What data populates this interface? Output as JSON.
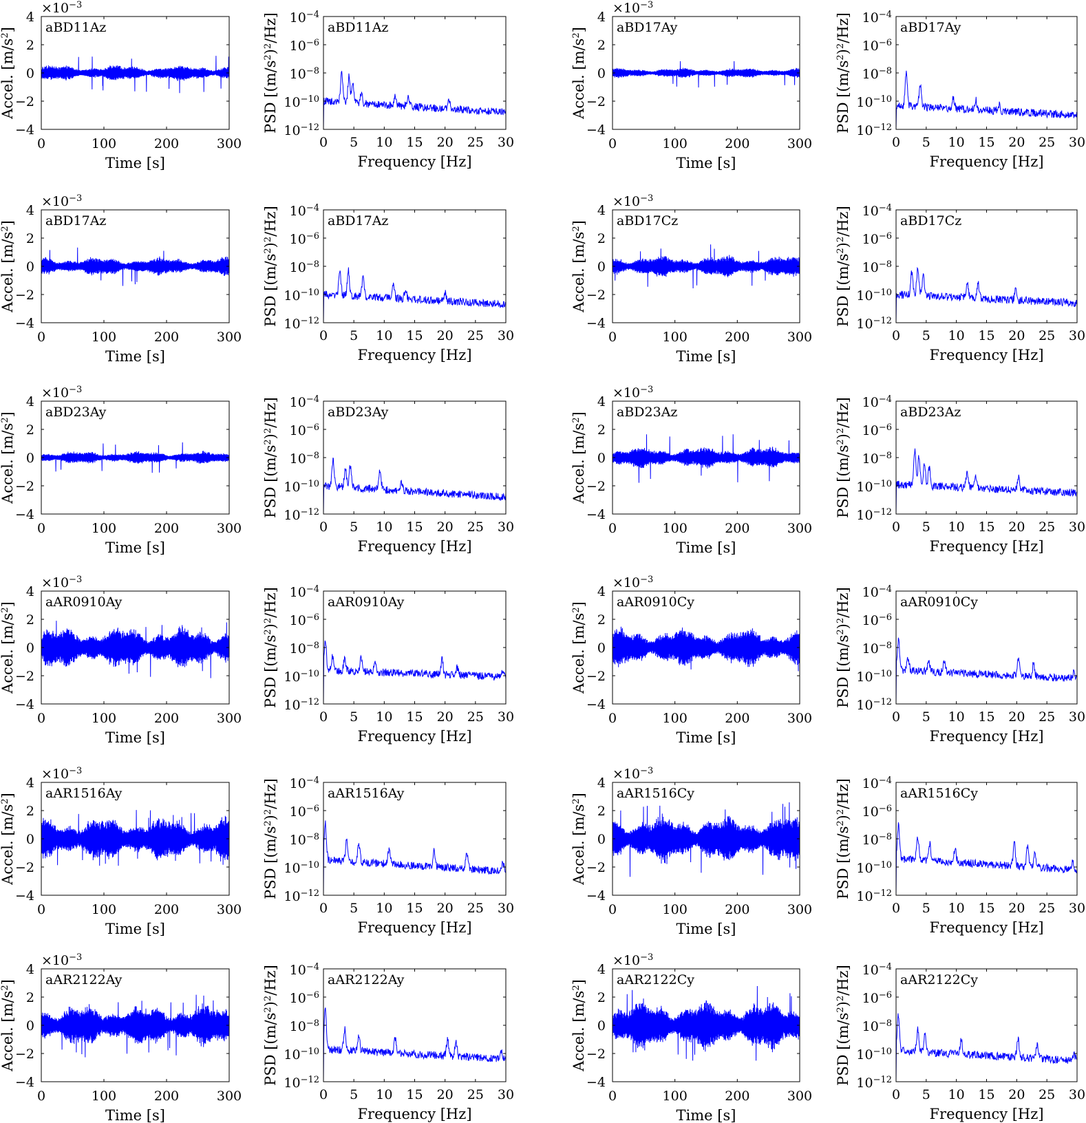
{
  "figure": {
    "time_xlabel": "Time [s]",
    "time_ylabel": "Accel. [m/s2]",
    "psd_xlabel": "Frequency [Hz]",
    "psd_ylabel": "PSD [(m/s2)2/Hz]",
    "time_exponent": "×10−3",
    "line_color": "#0000ff"
  },
  "chart_data": [
    {
      "type": "line",
      "kind": "time",
      "title": "aBD11Az",
      "xlabel": "Time [s]",
      "ylabel": "Accel. [m/s2]",
      "xlim": [
        0,
        300
      ],
      "ylim": [
        -4,
        4
      ],
      "xticks": [
        "0",
        "100",
        "200",
        "300"
      ],
      "yticks": [
        "4",
        "2",
        "0",
        "-2",
        "-4"
      ],
      "y_multiplier": "×10−3",
      "envelope_mean": 0.55,
      "envelope_peak": 1.6,
      "series": [
        {
          "name": "aBD11Az",
          "summary": "acceleration record, approximately ±0.6e-3 m/s2, peaks to ±1.6e-3 m/s2"
        }
      ]
    },
    {
      "type": "line",
      "kind": "psd",
      "title": "aBD11Az",
      "xlabel": "Frequency [Hz]",
      "ylabel": "PSD [(m/s2)2/Hz]",
      "xlim": [
        0,
        30
      ],
      "ylim_log10": [
        -12,
        -4
      ],
      "yscale": "log",
      "xticks": [
        "0",
        "5",
        "10",
        "15",
        "20",
        "25",
        "30"
      ],
      "yticks": [
        "10-4",
        "10-6",
        "10-8",
        "10-10",
        "10-12"
      ],
      "baseline_log10": [
        -10.0,
        -10.8
      ],
      "peaks": [
        [
          3.0,
          -7.9
        ],
        [
          4.2,
          -8.3
        ],
        [
          4.8,
          -8.6
        ],
        [
          6.2,
          -9.4
        ],
        [
          11.8,
          -9.5
        ],
        [
          13.9,
          -9.7
        ],
        [
          20.6,
          -9.9
        ]
      ]
    },
    {
      "type": "line",
      "kind": "time",
      "title": "aBD17Ay",
      "xlabel": "Time [s]",
      "ylabel": "Accel. [m/s2]",
      "xlim": [
        0,
        300
      ],
      "ylim": [
        -4,
        4
      ],
      "xticks": [
        "0",
        "100",
        "200",
        "300"
      ],
      "yticks": [
        "4",
        "2",
        "0",
        "-2",
        "-4"
      ],
      "y_multiplier": "×10−3",
      "envelope_mean": 0.35,
      "envelope_peak": 1.1,
      "series": [
        {
          "name": "aBD17Ay",
          "summary": "acceleration record, approximately ±0.4e-3 m/s2, peaks to ±1.1e-3 m/s2"
        }
      ]
    },
    {
      "type": "line",
      "kind": "psd",
      "title": "aBD17Ay",
      "xlabel": "Frequency [Hz]",
      "ylabel": "PSD [(m/s2)2/Hz]",
      "xlim": [
        0,
        30
      ],
      "ylim_log10": [
        -12,
        -4
      ],
      "yscale": "log",
      "xticks": [
        "0",
        "5",
        "10",
        "15",
        "20",
        "25",
        "30"
      ],
      "yticks": [
        "10-4",
        "10-6",
        "10-8",
        "10-10",
        "10-12"
      ],
      "baseline_log10": [
        -10.3,
        -11.0
      ],
      "peaks": [
        [
          1.7,
          -8.0
        ],
        [
          4.0,
          -8.8
        ],
        [
          9.5,
          -9.8
        ],
        [
          13.2,
          -9.9
        ],
        [
          17.0,
          -10.2
        ]
      ]
    },
    {
      "type": "line",
      "kind": "time",
      "title": "aBD17Az",
      "xlabel": "Time [s]",
      "ylabel": "Accel. [m/s2]",
      "xlim": [
        0,
        300
      ],
      "ylim": [
        -4,
        4
      ],
      "xticks": [
        "0",
        "100",
        "200",
        "300"
      ],
      "yticks": [
        "4",
        "2",
        "0",
        "-2",
        "-4"
      ],
      "y_multiplier": "×10−3",
      "envelope_mean": 0.65,
      "envelope_peak": 1.5,
      "series": [
        {
          "name": "aBD17Az",
          "summary": "acceleration record, approximately ±0.7e-3 m/s2, peaks to ±1.5e-3 m/s2"
        }
      ]
    },
    {
      "type": "line",
      "kind": "psd",
      "title": "aBD17Az",
      "xlabel": "Frequency [Hz]",
      "ylabel": "PSD [(m/s2)2/Hz]",
      "xlim": [
        0,
        30
      ],
      "ylim_log10": [
        -12,
        -4
      ],
      "yscale": "log",
      "xticks": [
        "0",
        "5",
        "10",
        "15",
        "20",
        "25",
        "30"
      ],
      "yticks": [
        "10-4",
        "10-6",
        "10-8",
        "10-10",
        "10-12"
      ],
      "baseline_log10": [
        -10.0,
        -10.7
      ],
      "peaks": [
        [
          2.7,
          -8.4
        ],
        [
          4.1,
          -8.2
        ],
        [
          6.5,
          -8.8
        ],
        [
          11.5,
          -9.2
        ],
        [
          13.5,
          -9.6
        ],
        [
          20.0,
          -9.9
        ]
      ]
    },
    {
      "type": "line",
      "kind": "time",
      "title": "aBD17Cz",
      "xlabel": "Time [s]",
      "ylabel": "Accel. [m/s2]",
      "xlim": [
        0,
        300
      ],
      "ylim": [
        -4,
        4
      ],
      "xticks": [
        "0",
        "100",
        "200",
        "300"
      ],
      "yticks": [
        "4",
        "2",
        "0",
        "-2",
        "-4"
      ],
      "y_multiplier": "×10−3",
      "envelope_mean": 0.75,
      "envelope_peak": 1.7,
      "series": [
        {
          "name": "aBD17Cz",
          "summary": "acceleration record, approximately ±0.8e-3 m/s2, peaks to ±1.7e-3 m/s2"
        }
      ]
    },
    {
      "type": "line",
      "kind": "psd",
      "title": "aBD17Cz",
      "xlabel": "Frequency [Hz]",
      "ylabel": "PSD [(m/s2)2/Hz]",
      "xlim": [
        0,
        30
      ],
      "ylim_log10": [
        -12,
        -4
      ],
      "yscale": "log",
      "xticks": [
        "0",
        "5",
        "10",
        "15",
        "20",
        "25",
        "30"
      ],
      "yticks": [
        "10-4",
        "10-6",
        "10-8",
        "10-10",
        "10-12"
      ],
      "baseline_log10": [
        -10.0,
        -10.6
      ],
      "peaks": [
        [
          2.6,
          -8.4
        ],
        [
          3.6,
          -8.1
        ],
        [
          4.5,
          -8.6
        ],
        [
          11.8,
          -9.1
        ],
        [
          13.6,
          -9.2
        ],
        [
          19.8,
          -9.7
        ]
      ]
    },
    {
      "type": "line",
      "kind": "time",
      "title": "aBD23Ay",
      "xlabel": "Time [s]",
      "ylabel": "Accel. [m/s2]",
      "xlim": [
        0,
        300
      ],
      "ylim": [
        -4,
        4
      ],
      "xticks": [
        "0",
        "100",
        "200",
        "300"
      ],
      "yticks": [
        "4",
        "2",
        "0",
        "-2",
        "-4"
      ],
      "y_multiplier": "×10−3",
      "envelope_mean": 0.45,
      "envelope_peak": 1.3,
      "series": [
        {
          "name": "aBD23Ay",
          "summary": "acceleration record, approximately ±0.5e-3 m/s2, peaks to ±1.3e-3 m/s2"
        }
      ]
    },
    {
      "type": "line",
      "kind": "psd",
      "title": "aBD23Ay",
      "xlabel": "Frequency [Hz]",
      "ylabel": "PSD [(m/s2)2/Hz]",
      "xlim": [
        0,
        30
      ],
      "ylim_log10": [
        -12,
        -4
      ],
      "yscale": "log",
      "xticks": [
        "0",
        "5",
        "10",
        "15",
        "20",
        "25",
        "30"
      ],
      "yticks": [
        "10-4",
        "10-6",
        "10-8",
        "10-10",
        "10-12"
      ],
      "baseline_log10": [
        -10.0,
        -10.8
      ],
      "peaks": [
        [
          1.6,
          -8.2
        ],
        [
          3.6,
          -8.8
        ],
        [
          4.4,
          -8.6
        ],
        [
          9.3,
          -9.0
        ],
        [
          12.8,
          -9.7
        ]
      ]
    },
    {
      "type": "line",
      "kind": "time",
      "title": "aBD23Az",
      "xlabel": "Time [s]",
      "ylabel": "Accel. [m/s2]",
      "xlim": [
        0,
        300
      ],
      "ylim": [
        -4,
        4
      ],
      "xticks": [
        "0",
        "100",
        "200",
        "300"
      ],
      "yticks": [
        "4",
        "2",
        "0",
        "-2",
        "-4"
      ],
      "y_multiplier": "×10−3",
      "envelope_mean": 0.75,
      "envelope_peak": 1.9,
      "series": [
        {
          "name": "aBD23Az",
          "summary": "acceleration record, approximately ±0.8e-3 m/s2, peaks to ±1.9e-3 m/s2"
        }
      ]
    },
    {
      "type": "line",
      "kind": "psd",
      "title": "aBD23Az",
      "xlabel": "Frequency [Hz]",
      "ylabel": "PSD [(m/s2)2/Hz]",
      "xlim": [
        0,
        30
      ],
      "ylim_log10": [
        -12,
        -4
      ],
      "yscale": "log",
      "xticks": [
        "0",
        "5",
        "10",
        "15",
        "20",
        "25",
        "30"
      ],
      "yticks": [
        "10-4",
        "10-6",
        "10-8",
        "10-10",
        "10-12"
      ],
      "baseline_log10": [
        -9.9,
        -10.5
      ],
      "peaks": [
        [
          3.1,
          -7.5
        ],
        [
          3.8,
          -7.9
        ],
        [
          4.7,
          -8.4
        ],
        [
          5.5,
          -8.8
        ],
        [
          11.8,
          -9.0
        ],
        [
          13.2,
          -9.2
        ],
        [
          20.3,
          -9.4
        ]
      ]
    },
    {
      "type": "line",
      "kind": "time",
      "title": "aAR0910Ay",
      "xlabel": "Time [s]",
      "ylabel": "Accel. [m/s2]",
      "xlim": [
        0,
        300
      ],
      "ylim": [
        -4,
        4
      ],
      "xticks": [
        "0",
        "100",
        "200",
        "300"
      ],
      "yticks": [
        "4",
        "2",
        "0",
        "-2",
        "-4"
      ],
      "y_multiplier": "×10−3",
      "envelope_mean": 1.45,
      "envelope_peak": 2.3,
      "series": [
        {
          "name": "aAR0910Ay",
          "summary": "acceleration record, approximately ±1.5e-3 m/s2, peaks to ±2.3e-3 m/s2"
        }
      ]
    },
    {
      "type": "line",
      "kind": "psd",
      "title": "aAR0910Ay",
      "xlabel": "Frequency [Hz]",
      "ylabel": "PSD [(m/s2)2/Hz]",
      "xlim": [
        0,
        30
      ],
      "ylim_log10": [
        -12,
        -4
      ],
      "yscale": "log",
      "xticks": [
        "0",
        "5",
        "10",
        "15",
        "20",
        "25",
        "30"
      ],
      "yticks": [
        "10-4",
        "10-6",
        "10-8",
        "10-10",
        "10-12"
      ],
      "baseline_log10": [
        -9.6,
        -10.1
      ],
      "peaks": [
        [
          0.3,
          -7.5
        ],
        [
          1.5,
          -8.6
        ],
        [
          3.5,
          -8.8
        ],
        [
          6.2,
          -8.8
        ],
        [
          8.5,
          -8.9
        ],
        [
          19.5,
          -8.9
        ],
        [
          22.0,
          -9.4
        ],
        [
          29.5,
          -9.6
        ]
      ]
    },
    {
      "type": "line",
      "kind": "time",
      "title": "aAR0910Cy",
      "xlabel": "Time [s]",
      "ylabel": "Accel. [m/s2]",
      "xlim": [
        0,
        300
      ],
      "ylim": [
        -4,
        4
      ],
      "xticks": [
        "0",
        "100",
        "200",
        "300"
      ],
      "yticks": [
        "4",
        "2",
        "0",
        "-2",
        "-4"
      ],
      "y_multiplier": "×10−3",
      "envelope_mean": 1.35,
      "envelope_peak": 2.2,
      "series": [
        {
          "name": "aAR0910Cy",
          "summary": "acceleration record, approximately ±1.4e-3 m/s2, peaks to ±2.2e-3 m/s2"
        }
      ]
    },
    {
      "type": "line",
      "kind": "psd",
      "title": "aAR0910Cy",
      "xlabel": "Frequency [Hz]",
      "ylabel": "PSD [(m/s2)2/Hz]",
      "xlim": [
        0,
        30
      ],
      "ylim_log10": [
        -12,
        -4
      ],
      "yscale": "log",
      "xticks": [
        "0",
        "5",
        "10",
        "15",
        "20",
        "25",
        "30"
      ],
      "yticks": [
        "10-4",
        "10-6",
        "10-8",
        "10-10",
        "10-12"
      ],
      "baseline_log10": [
        -9.6,
        -10.2
      ],
      "peaks": [
        [
          0.4,
          -7.4
        ],
        [
          2.0,
          -8.8
        ],
        [
          5.4,
          -8.9
        ],
        [
          8.0,
          -9.0
        ],
        [
          20.3,
          -8.7
        ],
        [
          22.8,
          -9.1
        ],
        [
          29.5,
          -9.7
        ]
      ]
    },
    {
      "type": "line",
      "kind": "time",
      "title": "aAR1516Ay",
      "xlabel": "Time [s]",
      "ylabel": "Accel. [m/s2]",
      "xlim": [
        0,
        300
      ],
      "ylim": [
        -4,
        4
      ],
      "xticks": [
        "0",
        "100",
        "200",
        "300"
      ],
      "yticks": [
        "4",
        "2",
        "0",
        "-2",
        "-4"
      ],
      "y_multiplier": "×10−3",
      "envelope_mean": 1.55,
      "envelope_peak": 2.4,
      "series": [
        {
          "name": "aAR1516Ay",
          "summary": "acceleration record, approximately ±1.6e-3 m/s2, peaks to ±2.4e-3 m/s2"
        }
      ]
    },
    {
      "type": "line",
      "kind": "psd",
      "title": "aAR1516Ay",
      "xlabel": "Frequency [Hz]",
      "ylabel": "PSD [(m/s2)2/Hz]",
      "xlim": [
        0,
        30
      ],
      "ylim_log10": [
        -12,
        -4
      ],
      "yscale": "log",
      "xticks": [
        "0",
        "5",
        "10",
        "15",
        "20",
        "25",
        "30"
      ],
      "yticks": [
        "10-4",
        "10-6",
        "10-8",
        "10-10",
        "10-12"
      ],
      "baseline_log10": [
        -9.5,
        -10.3
      ],
      "peaks": [
        [
          0.3,
          -6.9
        ],
        [
          3.8,
          -8.2
        ],
        [
          5.8,
          -8.3
        ],
        [
          10.8,
          -8.8
        ],
        [
          18.2,
          -8.8
        ],
        [
          23.6,
          -9.0
        ],
        [
          29.5,
          -9.7
        ]
      ]
    },
    {
      "type": "line",
      "kind": "time",
      "title": "aAR1516Cy",
      "xlabel": "Time [s]",
      "ylabel": "Accel. [m/s2]",
      "xlim": [
        0,
        300
      ],
      "ylim": [
        -4,
        4
      ],
      "xticks": [
        "0",
        "100",
        "200",
        "300"
      ],
      "yticks": [
        "4",
        "2",
        "0",
        "-2",
        "-4"
      ],
      "y_multiplier": "×10−3",
      "envelope_mean": 1.65,
      "envelope_peak": 2.9,
      "series": [
        {
          "name": "aAR1516Cy",
          "summary": "acceleration record, approximately ±1.7e-3 m/s2, peaks to ±2.9e-3 m/s2"
        }
      ]
    },
    {
      "type": "line",
      "kind": "psd",
      "title": "aAR1516Cy",
      "xlabel": "Frequency [Hz]",
      "ylabel": "PSD [(m/s2)2/Hz]",
      "xlim": [
        0,
        30
      ],
      "ylim_log10": [
        -12,
        -4
      ],
      "yscale": "log",
      "xticks": [
        "0",
        "5",
        "10",
        "15",
        "20",
        "25",
        "30"
      ],
      "yticks": [
        "10-4",
        "10-6",
        "10-8",
        "10-10",
        "10-12"
      ],
      "baseline_log10": [
        -9.4,
        -10.2
      ],
      "peaks": [
        [
          0.4,
          -6.9
        ],
        [
          3.6,
          -8.0
        ],
        [
          5.6,
          -8.4
        ],
        [
          9.8,
          -8.7
        ],
        [
          19.6,
          -8.3
        ],
        [
          21.8,
          -8.6
        ],
        [
          23.0,
          -8.9
        ],
        [
          29.3,
          -9.6
        ]
      ]
    },
    {
      "type": "line",
      "kind": "time",
      "title": "aAR2122Ay",
      "xlabel": "Time [s]",
      "ylabel": "Accel. [m/s2]",
      "xlim": [
        0,
        300
      ],
      "ylim": [
        -4,
        4
      ],
      "xticks": [
        "0",
        "100",
        "200",
        "300"
      ],
      "yticks": [
        "4",
        "2",
        "0",
        "-2",
        "-4"
      ],
      "y_multiplier": "×10−3",
      "envelope_mean": 1.45,
      "envelope_peak": 2.5,
      "series": [
        {
          "name": "aAR2122Ay",
          "summary": "acceleration record, approximately ±1.5e-3 m/s2, peaks to ±2.5e-3 m/s2"
        }
      ]
    },
    {
      "type": "line",
      "kind": "psd",
      "title": "aAR2122Ay",
      "xlabel": "Frequency [Hz]",
      "ylabel": "PSD [(m/s2)2/Hz]",
      "xlim": [
        0,
        30
      ],
      "ylim_log10": [
        -12,
        -4
      ],
      "yscale": "log",
      "xticks": [
        "0",
        "5",
        "10",
        "15",
        "20",
        "25",
        "30"
      ],
      "yticks": [
        "10-4",
        "10-6",
        "10-8",
        "10-10",
        "10-12"
      ],
      "baseline_log10": [
        -9.7,
        -10.4
      ],
      "peaks": [
        [
          0.3,
          -6.9
        ],
        [
          3.5,
          -8.3
        ],
        [
          5.8,
          -8.7
        ],
        [
          11.8,
          -8.9
        ],
        [
          20.4,
          -9.0
        ],
        [
          21.8,
          -9.2
        ],
        [
          29.3,
          -9.8
        ]
      ]
    },
    {
      "type": "line",
      "kind": "time",
      "title": "aAR2122Cy",
      "xlabel": "Time [s]",
      "ylabel": "Accel. [m/s2]",
      "xlim": [
        0,
        300
      ],
      "ylim": [
        -4,
        4
      ],
      "xticks": [
        "0",
        "100",
        "200",
        "300"
      ],
      "yticks": [
        "4",
        "2",
        "0",
        "-2",
        "-4"
      ],
      "y_multiplier": "×10−3",
      "envelope_mean": 1.75,
      "envelope_peak": 3.0,
      "series": [
        {
          "name": "aAR2122Cy",
          "summary": "acceleration record, approximately ±1.8e-3 m/s2, peaks to ±3.0e-3 m/s2"
        }
      ]
    },
    {
      "type": "line",
      "kind": "psd",
      "title": "aAR2122Cy",
      "xlabel": "Frequency [Hz]",
      "ylabel": "PSD [(m/s2)2/Hz]",
      "xlim": [
        0,
        30
      ],
      "ylim_log10": [
        -12,
        -4
      ],
      "yscale": "log",
      "xticks": [
        "0",
        "5",
        "10",
        "15",
        "20",
        "25",
        "30"
      ],
      "yticks": [
        "10-4",
        "10-6",
        "10-8",
        "10-10",
        "10-12"
      ],
      "baseline_log10": [
        -9.8,
        -10.5
      ],
      "peaks": [
        [
          0.4,
          -7.2
        ],
        [
          3.6,
          -8.3
        ],
        [
          4.8,
          -8.6
        ],
        [
          10.8,
          -9.0
        ],
        [
          20.2,
          -8.9
        ],
        [
          23.4,
          -9.3
        ],
        [
          29.5,
          -10.0
        ]
      ]
    }
  ]
}
